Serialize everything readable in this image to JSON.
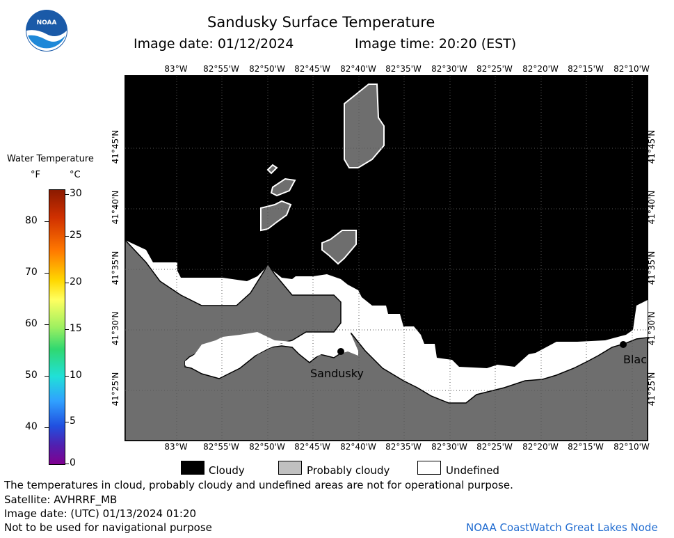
{
  "header": {
    "title": "Sandusky Surface Temperature",
    "image_date": "Image date: 01/12/2024",
    "image_time": "Image time: 20:20 (EST)"
  },
  "logo": {
    "text": "NOAA"
  },
  "map": {
    "lon_labels": [
      "83°W",
      "82°55'W",
      "82°50'W",
      "82°45'W",
      "82°40'W",
      "82°35'W",
      "82°30'W",
      "82°25'W",
      "82°20'W",
      "82°15'W",
      "82°10'W"
    ],
    "lat_labels": [
      "41°45'N",
      "41°40'N",
      "41°35'N",
      "41°30'N",
      "41°25'N"
    ],
    "places": {
      "sandusky": "Sandusky",
      "bay_view": "Blac"
    },
    "colors": {
      "cloudy": "#000000",
      "probably_cloudy": "#6e6e6e",
      "undefined": "#ffffff"
    }
  },
  "colorbar": {
    "title": "Water Temperature",
    "unit_f": "°F",
    "unit_c": "°C",
    "f_ticks": [
      "80",
      "70",
      "60",
      "50",
      "40"
    ],
    "c_ticks": [
      "30",
      "25",
      "20",
      "15",
      "10",
      "5",
      "0"
    ]
  },
  "legend": {
    "cloudy": "Cloudy",
    "probably_cloudy": "Probably cloudy",
    "undefined": "Undefined"
  },
  "footer": {
    "disclaimer": "The temperatures in cloud, probably cloudy and undefined areas are not for operational purpose.",
    "satellite": "Satellite: AVHRRF_MB",
    "utc_date": "Image date: (UTC) 01/13/2024  01:20",
    "nav_warning": "Not to be used for navigational purpose",
    "credit": "NOAA CoastWatch Great Lakes Node"
  }
}
